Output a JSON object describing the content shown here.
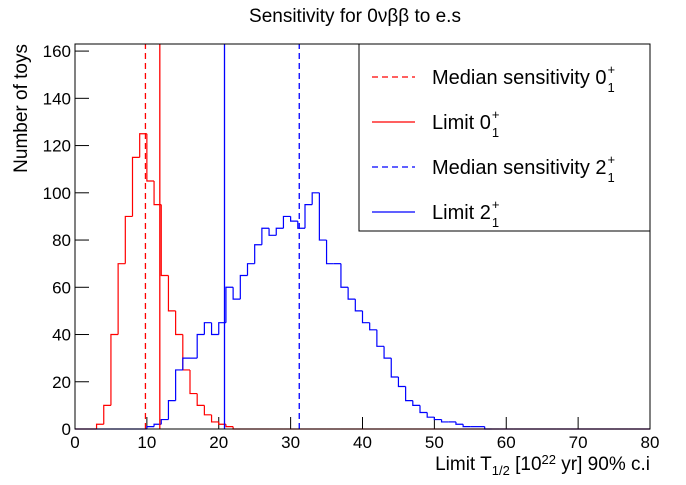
{
  "chart_data": {
    "type": "histogram",
    "title": "Sensitivity for 0νββ to e.s",
    "y_label": "Number of toys",
    "x_label": [
      {
        "text": "Limit T"
      },
      {
        "text": "1/2",
        "sub": true
      },
      {
        "text": " [10"
      },
      {
        "text": "22",
        "sup": true
      },
      {
        "text": " yr] 90% c.i"
      }
    ],
    "bins": [
      0,
      1,
      2,
      3,
      4,
      5,
      6,
      7,
      8,
      9,
      10,
      11,
      12,
      13,
      14,
      15,
      16,
      17,
      18,
      19,
      20,
      21,
      22,
      23,
      24,
      25,
      26,
      27,
      28,
      29,
      30,
      31,
      32,
      33,
      34,
      35,
      36,
      37,
      38,
      39,
      40,
      41,
      42,
      43,
      44,
      45,
      46,
      47,
      48,
      49,
      50,
      51,
      52,
      53,
      54,
      55,
      56,
      57,
      58,
      59,
      60,
      61,
      62,
      63,
      64,
      65,
      66,
      67,
      68,
      69,
      70,
      71,
      72,
      73,
      74,
      75,
      76,
      77,
      78,
      79,
      80
    ],
    "series": [
      {
        "color": "#ff0000",
        "values": [
          0,
          0,
          0,
          2,
          10,
          40,
          70,
          90,
          115,
          125,
          105,
          95,
          65,
          50,
          40,
          25,
          15,
          10,
          6,
          3,
          2,
          1,
          0,
          0,
          0,
          0,
          0,
          0,
          0,
          0,
          0,
          0,
          0,
          0,
          0,
          0,
          0,
          0,
          0,
          0,
          0,
          0,
          0,
          0,
          0,
          0,
          0,
          0,
          0,
          0,
          0,
          0,
          0,
          0,
          0,
          0,
          0,
          0,
          0,
          0,
          0,
          0,
          0,
          0,
          0,
          0,
          0,
          0,
          0,
          0,
          0,
          0,
          0,
          0,
          0,
          0,
          0,
          0,
          0,
          0
        ]
      },
      {
        "color": "#0000ff",
        "values": [
          0,
          0,
          0,
          0,
          0,
          0,
          0,
          0,
          0,
          0,
          1,
          2,
          4,
          12,
          25,
          30,
          30,
          40,
          45,
          40,
          45,
          60,
          55,
          65,
          70,
          78,
          85,
          82,
          85,
          90,
          88,
          85,
          95,
          100,
          80,
          70,
          70,
          60,
          55,
          50,
          45,
          42,
          35,
          30,
          22,
          18,
          12,
          10,
          7,
          5,
          4,
          3,
          3,
          2,
          1,
          1,
          1,
          0,
          0,
          0,
          0,
          0,
          0,
          0,
          0,
          0,
          0,
          0,
          0,
          0,
          0,
          0,
          0,
          0,
          0,
          0,
          0,
          0,
          0,
          0
        ]
      }
    ],
    "markers": [
      {
        "name": "Median sensitivity 0",
        "superscript": "+",
        "subscript": "1",
        "x": 9.8,
        "color": "#ff0000",
        "dashed": true
      },
      {
        "name": "Limit 0",
        "superscript": "+",
        "subscript": "1",
        "x": 11.8,
        "color": "#ff0000",
        "dashed": false
      },
      {
        "name": "Median sensitivity 2",
        "superscript": "+",
        "subscript": "1",
        "x": 31.2,
        "color": "#0000ff",
        "dashed": true
      },
      {
        "name": "Limit 2",
        "superscript": "+",
        "subscript": "1",
        "x": 20.8,
        "color": "#0000ff",
        "dashed": false
      }
    ],
    "xlim": [
      0,
      80
    ],
    "xticks": [
      0,
      10,
      20,
      30,
      40,
      50,
      60,
      70,
      80
    ],
    "ylim": [
      0,
      163
    ],
    "yticks": [
      0,
      20,
      40,
      60,
      80,
      100,
      120,
      140,
      160
    ],
    "legend": "top-right"
  }
}
